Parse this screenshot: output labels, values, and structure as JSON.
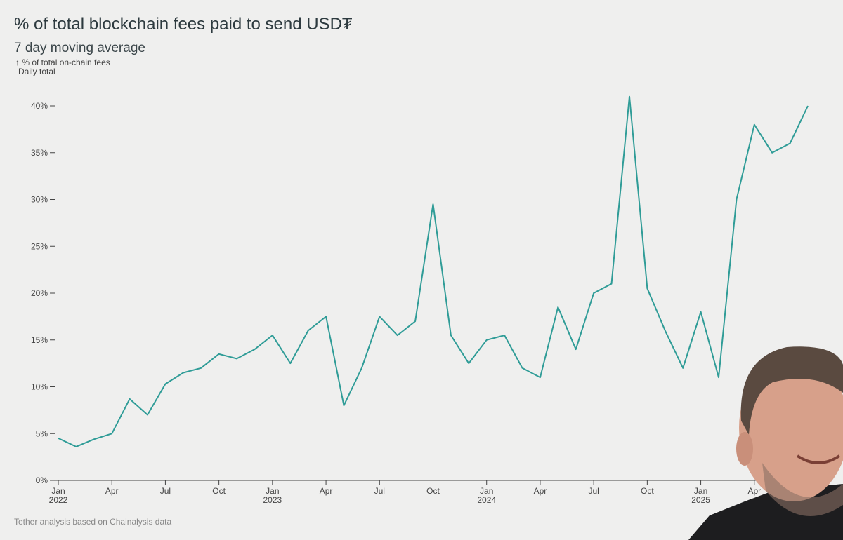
{
  "chart_data": {
    "type": "line",
    "title": "% of total blockchain fees paid to send USD₮",
    "subtitle": "7 day moving average",
    "y_label": "↑ % of total on-chain fees",
    "y_label_note": "Daily total",
    "source": "Tether analysis based on Chainalysis data",
    "x": [
      "2022-01",
      "2022-02",
      "2022-03",
      "2022-04",
      "2022-05",
      "2022-06",
      "2022-07",
      "2022-08",
      "2022-09",
      "2022-10",
      "2022-11",
      "2022-12",
      "2023-01",
      "2023-02",
      "2023-03",
      "2023-04",
      "2023-05",
      "2023-06",
      "2023-07",
      "2023-08",
      "2023-09",
      "2023-10",
      "2023-11",
      "2023-12",
      "2024-01",
      "2024-02",
      "2024-03",
      "2024-04",
      "2024-05",
      "2024-06",
      "2024-07",
      "2024-08",
      "2024-09",
      "2024-10",
      "2024-11",
      "2024-12",
      "2025-01",
      "2025-02",
      "2025-03",
      "2025-04",
      "2025-05",
      "2025-06",
      "2025-07"
    ],
    "series": [
      {
        "name": "% of total on-chain fees",
        "color": "#2f9c97",
        "values": [
          4.5,
          3.6,
          4.4,
          5.0,
          8.7,
          7.0,
          10.3,
          11.5,
          12.0,
          13.5,
          13.0,
          14.0,
          15.5,
          12.5,
          16.0,
          17.5,
          8.0,
          12.0,
          17.5,
          15.5,
          17.0,
          29.5,
          15.5,
          12.5,
          15.0,
          15.5,
          12.0,
          11.0,
          18.5,
          14.0,
          20.0,
          21.0,
          41.0,
          20.5,
          16.0,
          12.0,
          18.0,
          11.0,
          30.0,
          38.0,
          35.0,
          36.0,
          40.0
        ]
      }
    ],
    "xlim": [
      "2022-01",
      "2025-07"
    ],
    "xticks": [
      {
        "value": "2022-01",
        "label": "Jan",
        "year": "2022"
      },
      {
        "value": "2022-04",
        "label": "Apr"
      },
      {
        "value": "2022-07",
        "label": "Jul"
      },
      {
        "value": "2022-10",
        "label": "Oct"
      },
      {
        "value": "2023-01",
        "label": "Jan",
        "year": "2023"
      },
      {
        "value": "2023-04",
        "label": "Apr"
      },
      {
        "value": "2023-07",
        "label": "Jul"
      },
      {
        "value": "2023-10",
        "label": "Oct"
      },
      {
        "value": "2024-01",
        "label": "Jan",
        "year": "2024"
      },
      {
        "value": "2024-04",
        "label": "Apr"
      },
      {
        "value": "2024-07",
        "label": "Jul"
      },
      {
        "value": "2024-10",
        "label": "Oct"
      },
      {
        "value": "2025-01",
        "label": "Jan",
        "year": "2025"
      },
      {
        "value": "2025-04",
        "label": "Apr"
      }
    ],
    "ylim": [
      0,
      40
    ],
    "yticks": [
      {
        "value": 0,
        "label": "0%"
      },
      {
        "value": 5,
        "label": "5%"
      },
      {
        "value": 10,
        "label": "10%"
      },
      {
        "value": 15,
        "label": "15%"
      },
      {
        "value": 20,
        "label": "20%"
      },
      {
        "value": 25,
        "label": "25%"
      },
      {
        "value": 30,
        "label": "30%"
      },
      {
        "value": 35,
        "label": "35%"
      },
      {
        "value": 40,
        "label": "40%"
      }
    ]
  }
}
